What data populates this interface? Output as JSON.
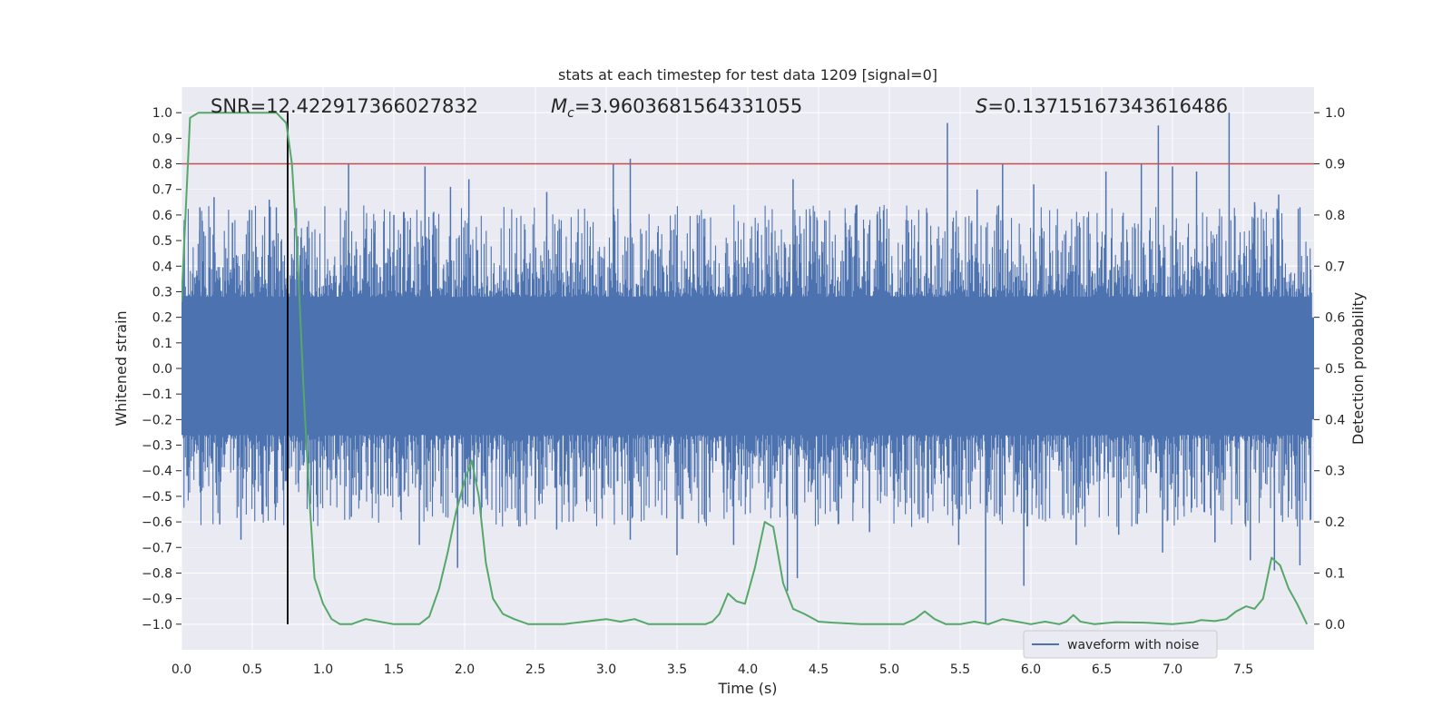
{
  "chart_data": {
    "type": "line",
    "title": "stats at each timestep for test data 1209 [signal=0]",
    "xlabel": "Time (s)",
    "ylabel": "Whitened strain",
    "y2label": "Detection probability",
    "xlim": [
      0,
      8
    ],
    "ylim": [
      -1.1,
      1.1
    ],
    "y2lim": [
      -0.05,
      1.05
    ],
    "x_ticks": [
      0.0,
      0.5,
      1.0,
      1.5,
      2.0,
      2.5,
      3.0,
      3.5,
      4.0,
      4.5,
      5.0,
      5.5,
      6.0,
      6.5,
      7.0,
      7.5
    ],
    "x_tick_labels": [
      "0.0",
      "0.5",
      "1.0",
      "1.5",
      "2.0",
      "2.5",
      "3.0",
      "3.5",
      "4.0",
      "4.5",
      "5.0",
      "5.5",
      "6.0",
      "6.5",
      "7.0",
      "7.5"
    ],
    "y_ticks": [
      1.0,
      0.9,
      0.8,
      0.7,
      0.6,
      0.5,
      0.4,
      0.3,
      0.2,
      0.1,
      0.0,
      -0.1,
      -0.2,
      -0.3,
      -0.4,
      -0.5,
      -0.6,
      -0.7,
      -0.8,
      -0.9,
      -1.0
    ],
    "y_tick_labels": [
      "1.0",
      "0.9",
      "0.8",
      "0.7",
      "0.6",
      "0.5",
      "0.4",
      "0.3",
      "0.2",
      "0.1",
      "0.0",
      "−0.1",
      "−0.2",
      "−0.3",
      "−0.4",
      "−0.5",
      "−0.6",
      "−0.7",
      "−0.8",
      "−0.9",
      "−1.0"
    ],
    "y2_ticks": [
      1.0,
      0.9,
      0.8,
      0.7,
      0.6,
      0.5,
      0.4,
      0.3,
      0.2,
      0.1,
      0.0
    ],
    "y2_tick_labels": [
      "1.0",
      "0.9",
      "0.8",
      "0.7",
      "0.6",
      "0.5",
      "0.4",
      "0.3",
      "0.2",
      "0.1",
      "0.0"
    ],
    "annotations": {
      "snr": "SNR=12.422917366027832",
      "mc_symbol": "M",
      "mc_subscript": "c",
      "mc_value": "=3.9603681564331055",
      "s_symbol": "S",
      "s_value": "=0.13715167343616486"
    },
    "legend": {
      "label": "waveform with noise",
      "placement": "lower-right"
    },
    "threshold_line": {
      "y": 0.8,
      "color": "#c44e52"
    },
    "marker_line": {
      "x": 0.75,
      "y_range": [
        -1.0,
        1.0
      ],
      "color": "#000000"
    },
    "waveform_envelope": {
      "color": "#4c72b0",
      "description_of_data": "dense noisy waveform, typical amplitude",
      "core_amplitude": 0.2,
      "peaks_positive": [
        [
          0.02,
          0.58
        ],
        [
          0.13,
          0.63
        ],
        [
          0.23,
          0.67
        ],
        [
          0.36,
          0.57
        ],
        [
          0.48,
          0.62
        ],
        [
          0.62,
          0.66
        ],
        [
          0.67,
          0.63
        ],
        [
          1.18,
          0.8
        ],
        [
          1.5,
          0.6
        ],
        [
          1.72,
          0.79
        ],
        [
          1.9,
          0.71
        ],
        [
          2.03,
          0.74
        ],
        [
          2.58,
          0.69
        ],
        [
          3.05,
          0.8
        ],
        [
          3.17,
          0.82
        ],
        [
          4.32,
          0.74
        ],
        [
          4.77,
          0.64
        ],
        [
          5.41,
          0.96
        ],
        [
          5.62,
          0.7
        ],
        [
          5.8,
          0.8
        ],
        [
          6.02,
          0.72
        ],
        [
          6.53,
          0.77
        ],
        [
          6.78,
          0.8
        ],
        [
          6.9,
          0.95
        ],
        [
          7.0,
          0.79
        ],
        [
          7.17,
          0.77
        ],
        [
          7.4,
          1.0
        ],
        [
          7.58,
          0.65
        ],
        [
          7.75,
          0.68
        ],
        [
          7.9,
          0.63
        ]
      ],
      "peaks_negative": [
        [
          0.04,
          -0.42
        ],
        [
          0.27,
          -0.61
        ],
        [
          0.42,
          -0.67
        ],
        [
          0.6,
          -0.54
        ],
        [
          0.75,
          -0.68
        ],
        [
          1.2,
          -0.58
        ],
        [
          1.68,
          -0.69
        ],
        [
          1.95,
          -0.78
        ],
        [
          2.65,
          -0.63
        ],
        [
          3.17,
          -0.67
        ],
        [
          3.5,
          -0.73
        ],
        [
          3.9,
          -0.69
        ],
        [
          4.28,
          -0.87
        ],
        [
          4.35,
          -0.82
        ],
        [
          4.86,
          -0.64
        ],
        [
          5.49,
          -0.69
        ],
        [
          5.68,
          -1.0
        ],
        [
          5.95,
          -0.85
        ],
        [
          6.32,
          -0.69
        ],
        [
          6.62,
          -0.65
        ],
        [
          6.93,
          -0.72
        ],
        [
          7.3,
          -0.68
        ],
        [
          7.55,
          -0.75
        ],
        [
          7.72,
          -0.79
        ],
        [
          7.9,
          -0.77
        ]
      ]
    },
    "series": [
      {
        "name": "waveform with noise",
        "axis": "left",
        "color": "#4c72b0"
      },
      {
        "axis": "right",
        "color": "#55a868",
        "x": [
          0.0,
          0.06,
          0.12,
          0.2,
          0.3,
          0.45,
          0.6,
          0.67,
          0.74,
          0.78,
          0.82,
          0.86,
          0.9,
          0.94,
          1.0,
          1.06,
          1.12,
          1.2,
          1.3,
          1.4,
          1.5,
          1.6,
          1.68,
          1.75,
          1.82,
          1.88,
          1.94,
          2.0,
          2.05,
          2.1,
          2.15,
          2.2,
          2.27,
          2.35,
          2.45,
          2.55,
          2.7,
          2.85,
          3.0,
          3.1,
          3.2,
          3.3,
          3.45,
          3.6,
          3.7,
          3.75,
          3.8,
          3.86,
          3.92,
          3.98,
          4.05,
          4.12,
          4.18,
          4.25,
          4.32,
          4.4,
          4.5,
          4.6,
          4.8,
          5.0,
          5.1,
          5.18,
          5.25,
          5.32,
          5.4,
          5.5,
          5.6,
          5.7,
          5.8,
          5.9,
          6.0,
          6.1,
          6.2,
          6.25,
          6.3,
          6.35,
          6.45,
          6.6,
          6.8,
          7.0,
          7.15,
          7.2,
          7.3,
          7.38,
          7.45,
          7.52,
          7.58,
          7.64,
          7.7,
          7.76,
          7.82,
          7.88,
          7.95
        ],
        "values": [
          0.63,
          0.99,
          1.0,
          1.0,
          1.0,
          1.0,
          1.0,
          1.0,
          0.98,
          0.9,
          0.72,
          0.47,
          0.26,
          0.09,
          0.04,
          0.01,
          0.0,
          0.0,
          0.01,
          0.005,
          0.0,
          0.0,
          0.0,
          0.015,
          0.07,
          0.14,
          0.22,
          0.28,
          0.32,
          0.25,
          0.12,
          0.05,
          0.02,
          0.01,
          0.0,
          0.0,
          0.0,
          0.005,
          0.01,
          0.005,
          0.01,
          0.0,
          0.0,
          0.0,
          0.0,
          0.005,
          0.02,
          0.06,
          0.045,
          0.04,
          0.11,
          0.2,
          0.19,
          0.08,
          0.03,
          0.02,
          0.005,
          0.003,
          0.0,
          0.0,
          0.0,
          0.01,
          0.025,
          0.01,
          0.0,
          0.0,
          0.005,
          0.0,
          0.01,
          0.005,
          0.0,
          0.005,
          0.0,
          0.005,
          0.018,
          0.005,
          0.0,
          0.004,
          0.003,
          0.0,
          0.004,
          0.008,
          0.006,
          0.01,
          0.025,
          0.035,
          0.03,
          0.05,
          0.13,
          0.115,
          0.07,
          0.04,
          0.0
        ]
      }
    ],
    "grid": true,
    "background": "#eaeaf2"
  }
}
